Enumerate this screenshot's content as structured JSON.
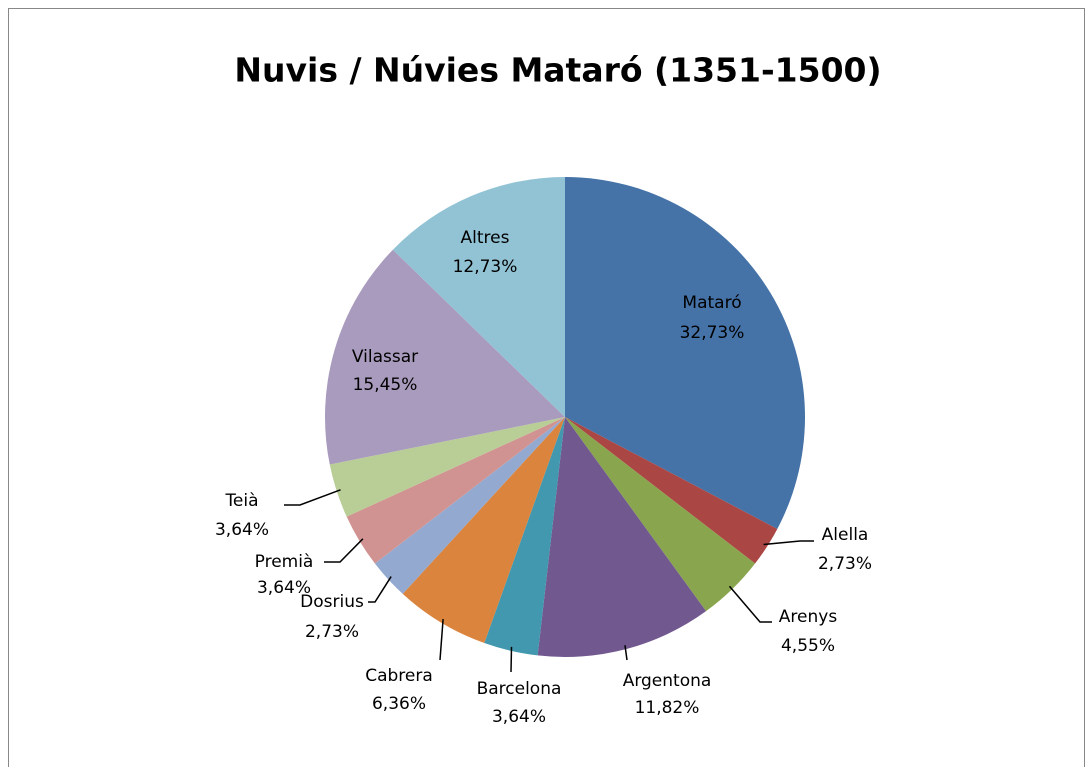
{
  "chart_data": {
    "type": "pie",
    "title": "Nuvis / Núvies Mataró (1351-1500)",
    "categories": [
      "Mataró",
      "Alella",
      "Arenys",
      "Argentona",
      "Barcelona",
      "Cabrera",
      "Dosrius",
      "Premià",
      "Teià",
      "Vilassar",
      "Altres"
    ],
    "values": [
      32.73,
      2.73,
      4.55,
      11.82,
      3.64,
      6.36,
      2.73,
      3.64,
      3.64,
      15.45,
      12.73
    ],
    "value_labels": [
      "32,73%",
      "2,73%",
      "4,55%",
      "11,82%",
      "3,64%",
      "6,36%",
      "2,73%",
      "3,64%",
      "3,64%",
      "15,45%",
      "12,73%"
    ],
    "colors": [
      "#4572a7",
      "#aa4643",
      "#89a54e",
      "#71588f",
      "#4198af",
      "#db843d",
      "#93a9cf",
      "#d19392",
      "#b9cd96",
      "#a99bbd",
      "#92c3d5"
    ]
  }
}
